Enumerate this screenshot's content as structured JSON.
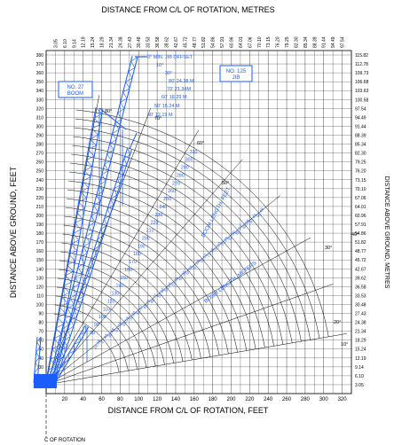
{
  "titles": {
    "top": "DISTANCE FROM C/L OF ROTATION, METRES",
    "bottom": "DISTANCE FROM C/L OF ROTATION, FEET",
    "left": "DISTANCE ABOVE GROUND, FEET",
    "right": "DISTANCE ABOVE GROUND, METRES",
    "cl_rotation": "C OF ROTATION"
  },
  "boxes": {
    "boom": [
      "NO. 27",
      "BOOM"
    ],
    "jib": [
      "NO. 125",
      "JIB"
    ]
  },
  "jib_notes": {
    "offset": "3° MIN. JIB OFFSET",
    "lines": [
      "80' 24.38 M",
      "70' 21.34M",
      "60' 18.29 M",
      "50' 15.24 M",
      "40' 12.19 M"
    ],
    "angle_top": "10°",
    "angle_mid": "30°"
  },
  "axes": {
    "top_metres": [
      "3.05",
      "6.10",
      "9.14",
      "12.19",
      "15.24",
      "18.29",
      "21.34",
      "24.38",
      "27.43",
      "30.48",
      "33.53",
      "36.58",
      "39.62",
      "42.67",
      "45.72",
      "48.77",
      "51.82",
      "54.86",
      "57.91",
      "60.96",
      "64.01",
      "67.06",
      "70.10",
      "73.15",
      "76.20",
      "79.25",
      "82.30",
      "85.34",
      "88.39",
      "91.44",
      "94.49",
      "97.54"
    ],
    "bottom_feet": [
      "20",
      "40",
      "60",
      "80",
      "100",
      "120",
      "140",
      "160",
      "180",
      "200",
      "220",
      "240",
      "260",
      "280",
      "300",
      "320"
    ],
    "left_feet": [
      "380",
      "370",
      "360",
      "350",
      "340",
      "330",
      "320",
      "310",
      "300",
      "290",
      "280",
      "270",
      "260",
      "250",
      "240",
      "230",
      "220",
      "210",
      "200",
      "190",
      "180",
      "170",
      "160",
      "150",
      "140",
      "130",
      "120",
      "110",
      "100",
      "90",
      "80",
      "70",
      "60",
      "50",
      "40",
      "30",
      "20",
      "10"
    ],
    "right_metres": [
      "115.82",
      "112.78",
      "109.73",
      "106.68",
      "103.63",
      "100.58",
      "97.54",
      "94.49",
      "91.44",
      "88.39",
      "85.34",
      "82.30",
      "79.25",
      "76.20",
      "73.15",
      "70.10",
      "67.06",
      "64.01",
      "60.96",
      "57.91",
      "54.86",
      "51.82",
      "48.77",
      "45.72",
      "42.67",
      "39.62",
      "36.58",
      "33.53",
      "30.48",
      "27.43",
      "24.38",
      "21.34",
      "18.29",
      "15.24",
      "12.19",
      "9.14",
      "6.10",
      "3.05"
    ]
  },
  "boom_lengths_feet": [
    "310",
    "300",
    "290",
    "280",
    "270",
    "260",
    "250",
    "240",
    "230",
    "220",
    "210",
    "200",
    "190",
    "180",
    "170",
    "160",
    "150",
    "140",
    "130",
    "120",
    "110",
    "100",
    "90",
    "80"
  ],
  "boom_lengths_metres_a": [
    "94.49",
    "91.44",
    "88.39",
    "85.34",
    "82.30",
    "79.25",
    "76.20",
    "73.15",
    "70.10",
    "67.06",
    "64.01",
    "60.96",
    "57.91",
    "54.86",
    "51.82",
    "48.77",
    "45.72",
    "42.67",
    "39.62",
    "36.58",
    "33.53",
    "30.48",
    "27.43",
    "24.38"
  ],
  "boom_length_label_ft": "BOOM LENGTH, FEET",
  "boom_length_label_m": "BOOM LENGTH, METERS",
  "radial_angles": [
    "80°",
    "70°",
    "60°",
    "50°",
    "40°",
    "30°",
    "20°",
    "10°"
  ],
  "colors": {
    "accent": "#1a5dff",
    "line": "#000000"
  }
}
